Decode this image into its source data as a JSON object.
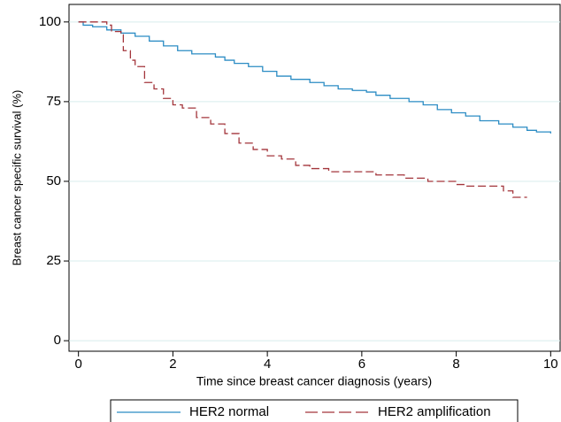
{
  "chart_data": {
    "type": "step",
    "x_label": "Time since breast cancer diagnosis (years)",
    "y_label": "Breast cancer specific survival (%)",
    "xlim": [
      -0.2,
      10.2
    ],
    "ylim": [
      -3.3,
      105.5
    ],
    "xticks": [
      0,
      2,
      4,
      6,
      8,
      10
    ],
    "yticks": [
      0,
      25,
      50,
      75,
      100
    ],
    "grid": true,
    "legend": "bottom",
    "series": [
      {
        "name": "HER2 normal",
        "color": "#2b8cc4",
        "dashed": false,
        "x": [
          0,
          0.1,
          0.3,
          0.6,
          0.9,
          1.2,
          1.5,
          1.8,
          2.1,
          2.4,
          2.9,
          3.1,
          3.3,
          3.6,
          3.9,
          4.2,
          4.5,
          4.9,
          5.2,
          5.5,
          5.8,
          6.1,
          6.3,
          6.6,
          7.0,
          7.3,
          7.6,
          7.9,
          8.2,
          8.5,
          8.9,
          9.2,
          9.5,
          9.7,
          10.0
        ],
        "values": [
          100,
          99,
          98.5,
          97.5,
          96.5,
          95.5,
          94,
          92.5,
          91,
          90,
          89,
          88,
          87,
          86,
          84.5,
          83,
          82,
          81,
          80,
          79,
          78.5,
          78,
          77,
          76,
          75,
          74,
          72.5,
          71.5,
          70.5,
          69,
          68,
          67,
          66,
          65.5,
          65
        ]
      },
      {
        "name": "HER2 amplification",
        "color": "#a3353b",
        "dashed": true,
        "x": [
          0,
          0.6,
          0.7,
          0.9,
          0.95,
          1.1,
          1.2,
          1.4,
          1.6,
          1.8,
          2.0,
          2.2,
          2.5,
          2.8,
          3.1,
          3.4,
          3.7,
          4.0,
          4.3,
          4.6,
          4.9,
          5.3,
          6.3,
          6.9,
          7.4,
          8.0,
          8.2,
          9.0,
          9.2,
          9.5
        ],
        "values": [
          100,
          99,
          97,
          96,
          91,
          88,
          86,
          81,
          79,
          76,
          74,
          73,
          70,
          68,
          65,
          62,
          60,
          58,
          57,
          55,
          54,
          53,
          52,
          51,
          50,
          49,
          48.5,
          47,
          45,
          45
        ]
      }
    ]
  }
}
